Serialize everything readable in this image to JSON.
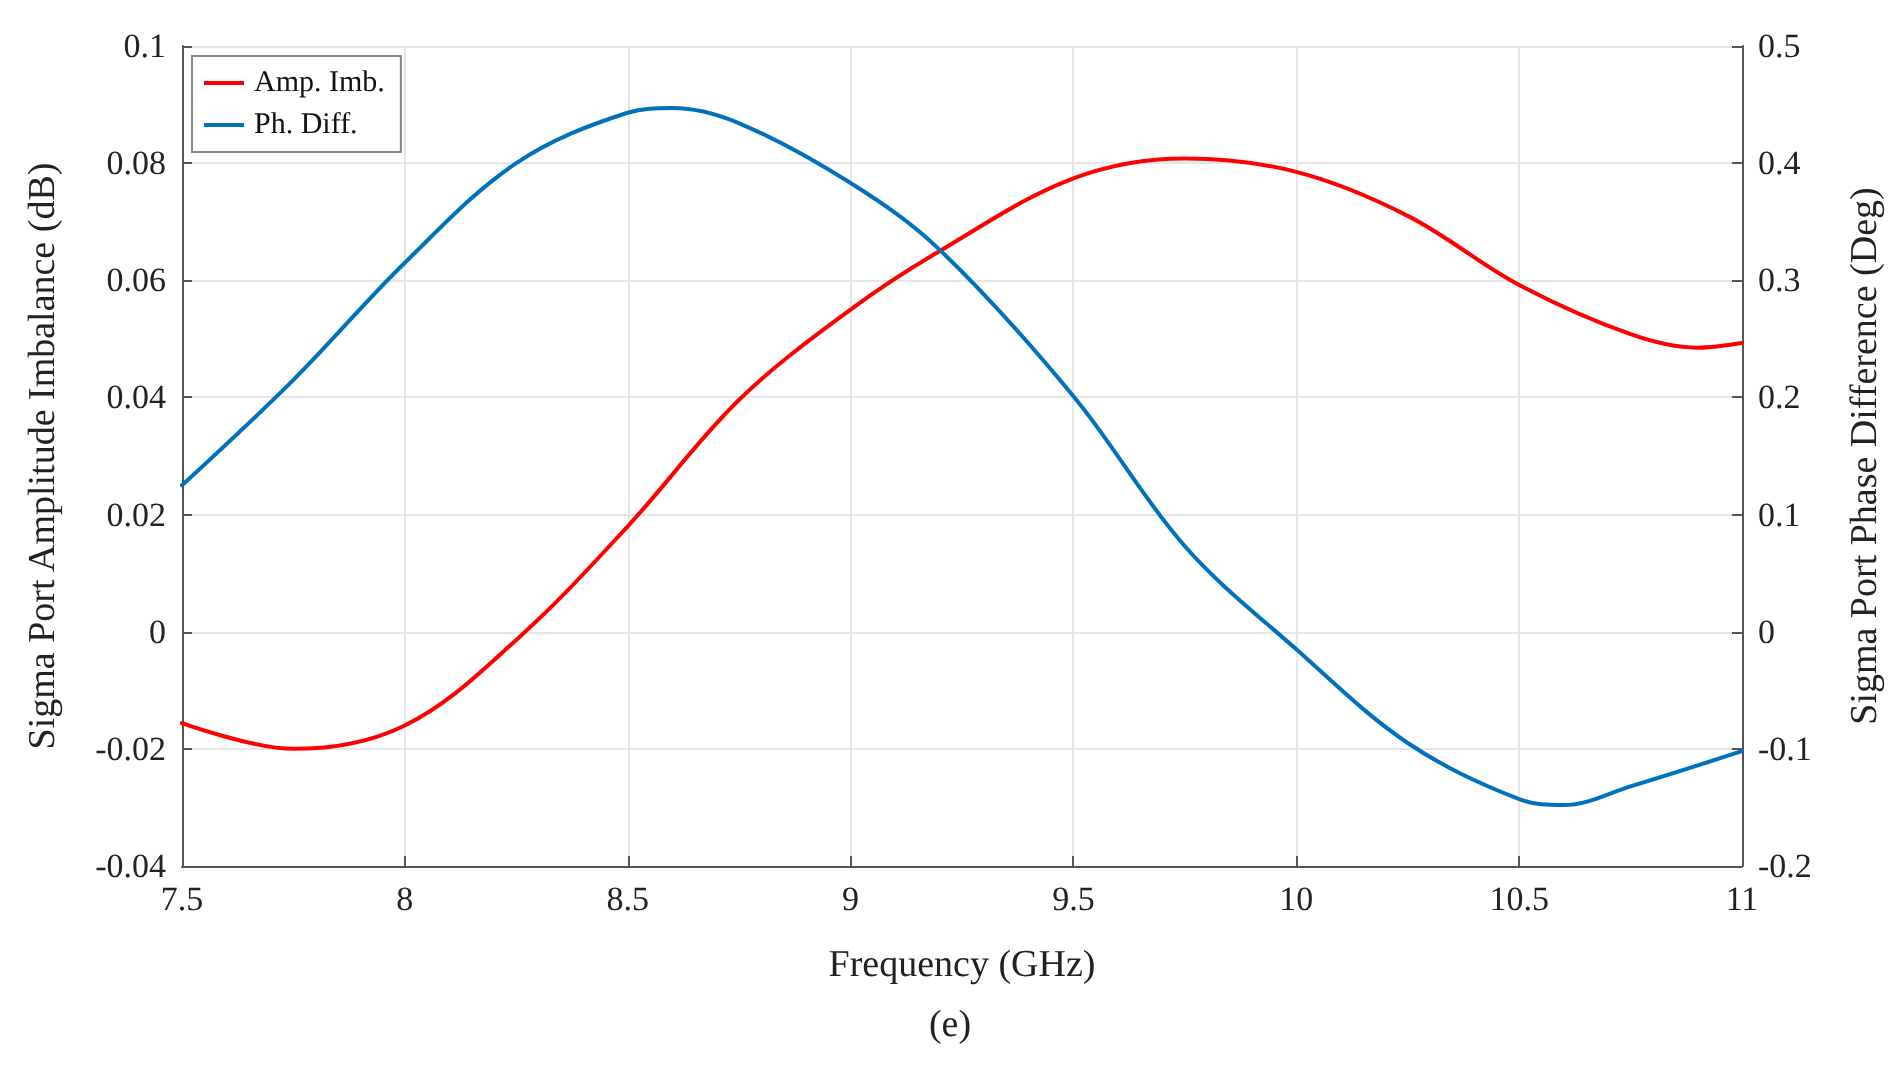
{
  "chart_data": {
    "type": "line",
    "xlabel": "Frequency (GHz)",
    "ylabel": "Sigma Port Amplitude Imbalance (dB)",
    "y2label": "Sigma Port Phase Difference (Deg)",
    "annotations": [
      "(e)"
    ],
    "xlim": [
      7.5,
      11
    ],
    "xticks": [
      7.5,
      8,
      8.5,
      9,
      9.5,
      10,
      10.5,
      11
    ],
    "ylim": [
      -0.04,
      0.1
    ],
    "yticks": [
      -0.04,
      -0.02,
      0,
      0.02,
      0.04,
      0.06,
      0.08,
      0.1
    ],
    "y2lim": [
      -0.2,
      0.5
    ],
    "y2ticks": [
      -0.2,
      -0.1,
      0,
      0.1,
      0.2,
      0.3,
      0.4,
      0.5
    ],
    "grid": true,
    "legend": "top left",
    "marker": "none",
    "line_style": "solid",
    "series": [
      {
        "name": "Amp. Imb.",
        "color": "#ff0000",
        "x": [
          7.5,
          7.75,
          8,
          8.25,
          8.5,
          8.75,
          9,
          9.2,
          9.5,
          9.75,
          10,
          10.25,
          10.5,
          10.75,
          10.9,
          11
        ],
        "values": [
          -0.0156,
          -0.02,
          -0.016,
          -0.0014,
          0.018,
          0.0396,
          0.055,
          0.065,
          0.0774,
          0.0808,
          0.0785,
          0.071,
          0.0592,
          0.0508,
          0.0485,
          0.0493
        ]
      },
      {
        "name": "Ph. Diff.",
        "color": "#0072bd",
        "axis": "y2",
        "x": [
          7.5,
          7.75,
          8,
          8.25,
          8.5,
          8.6,
          8.75,
          9,
          9.2,
          9.5,
          9.75,
          10,
          10.25,
          10.5,
          10.6,
          10.75,
          11
        ],
        "values": [
          0.125,
          0.215,
          0.315,
          0.4,
          0.443,
          0.447,
          0.434,
          0.383,
          0.326,
          0.201,
          0.073,
          -0.015,
          -0.095,
          -0.143,
          -0.148,
          -0.132,
          -0.102
        ]
      }
    ]
  }
}
